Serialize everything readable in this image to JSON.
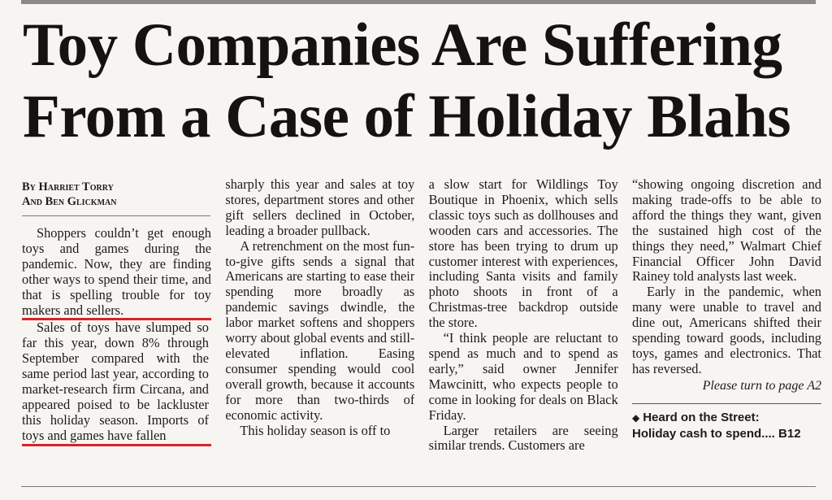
{
  "headline": {
    "line1": "Toy Companies Are Suffering",
    "line2": "From a Case of Holiday Blahs"
  },
  "byline": {
    "line1": "By Harriet Torry",
    "line2": "And Ben Glickman"
  },
  "column1": {
    "p1": "Shoppers couldn’t get enough toys and games during the pandemic. Now, they are finding other ways to spend their time, and that is spelling trouble for toy makers and sellers.",
    "p2": "Sales of toys have slumped so far this year, down 8% through September compared with the same period last year, according to market-research firm Circana, and appeared poised to be lackluster this holiday season. Imports of toys and games have fallen"
  },
  "column2": {
    "p1": "sharply this year and sales at toy stores, department stores and other gift sellers declined in October, leading a broader pullback.",
    "p2": "A retrenchment on the most fun-to-give gifts sends a signal that Americans are starting to ease their spending more broadly as pandemic savings dwindle, the labor market softens and shoppers worry about global events and still-elevated inflation. Easing consumer spending would cool overall growth, because it accounts for more than two-thirds of economic activity.",
    "p3": "This holiday season is off to"
  },
  "column3": {
    "p1": "a slow start for Wildlings Toy Boutique in Phoenix, which sells classic toys such as dollhouses and wooden cars and accessories. The store has been trying to drum up customer interest with experiences, including Santa visits and family photo shoots in front of a Christmas-tree backdrop outside the store.",
    "p2": "“I think people are reluctant to spend as much and to spend as early,” said owner Jennifer Mawcinitt, who expects people to come in looking for deals on Black Friday.",
    "p3": "Larger retailers are seeing similar trends. Customers are"
  },
  "column4": {
    "p1": "“showing ongoing discretion and making trade-offs to be able to afford the things they want, given the sustained high cost of the things they need,” Walmart Chief Financial Officer John David Rainey told analysts last week.",
    "p2": "Early in the pandemic, when many were unable to travel and dine out, Americans shifted their spending toward goods, including toys, games and electronics. That has reversed.",
    "turn": "Please turn to page A2"
  },
  "teaser": {
    "line1": "Heard on the Street:",
    "line2": "Holiday cash to spend.... B12"
  },
  "colors": {
    "highlight_box": "#d8232a",
    "paper": "#f6f5f1",
    "ink": "#1c1b19"
  }
}
